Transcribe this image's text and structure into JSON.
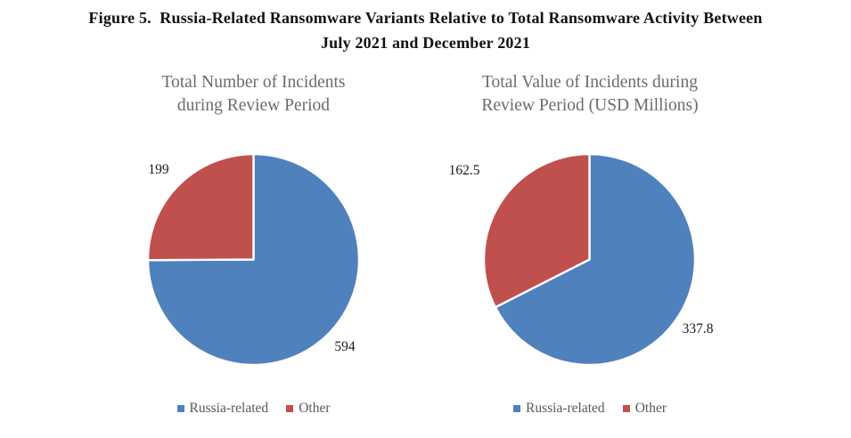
{
  "figure": {
    "title": "Figure 5.  Russia-Related Ransomware Variants Relative to Total Ransomware Activity Between\nJuly 2021 and December 2021"
  },
  "colors": {
    "russia_related": "#4F81BD",
    "other": "#C0504D",
    "figure_title_text": "#111111",
    "chart_title_text": "#6B6B6B",
    "legend_text": "#595959",
    "data_label_text": "#1A1A1A",
    "slice_divider": "#FFFFFF"
  },
  "chart_data": [
    {
      "type": "pie",
      "title": "Total Number of Incidents\nduring Review Period",
      "start_angle_deg": 0,
      "direction": "clockwise",
      "legend_position": "bottom",
      "slices": [
        {
          "label": "Russia-related",
          "value": 594,
          "value_label": "594",
          "color": "#4F81BD"
        },
        {
          "label": "Other",
          "value": 199,
          "value_label": "199",
          "color": "#C0504D"
        }
      ]
    },
    {
      "type": "pie",
      "title": "Total Value of Incidents during\nReview Period (USD Millions)",
      "start_angle_deg": 0,
      "direction": "clockwise",
      "legend_position": "bottom",
      "slices": [
        {
          "label": "Russia-related",
          "value": 337.8,
          "value_label": "337.8",
          "color": "#4F81BD"
        },
        {
          "label": "Other",
          "value": 162.5,
          "value_label": "162.5",
          "color": "#C0504D"
        }
      ]
    }
  ]
}
